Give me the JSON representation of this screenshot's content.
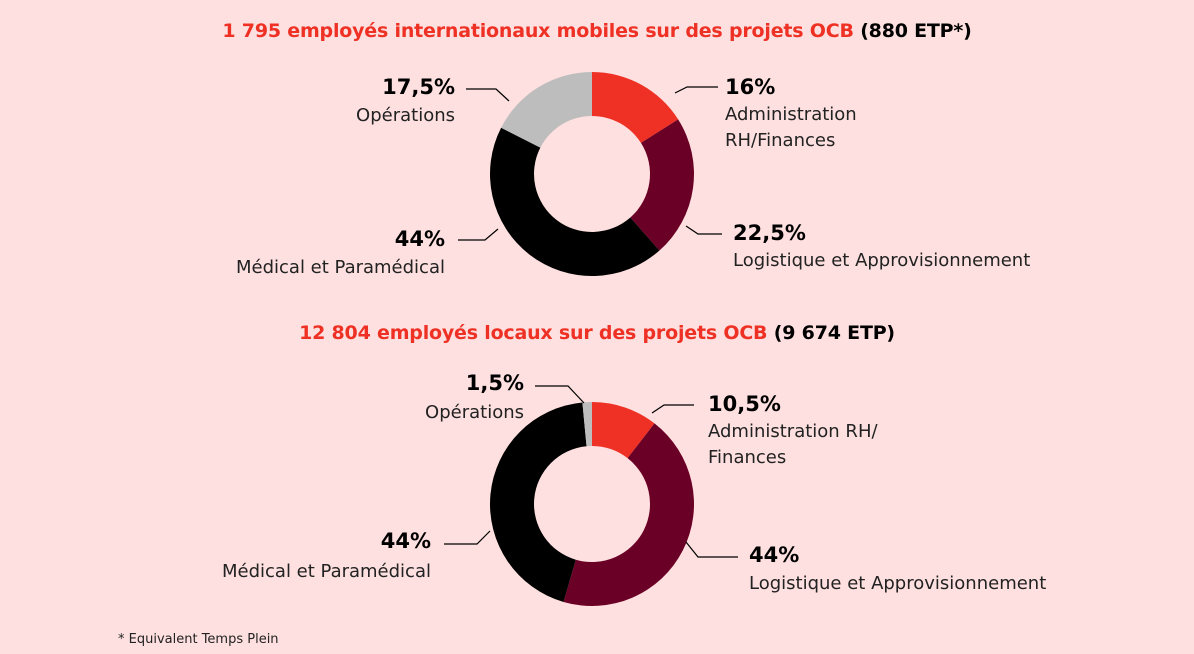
{
  "chart_data": [
    {
      "type": "donut",
      "title": "1 795 employés internationaux mobiles sur des projets OCB",
      "title_suffix": "(880 ETP*)",
      "slices": [
        {
          "pct": "16%",
          "value": 16,
          "label": [
            "Administration",
            "RH/Finances"
          ],
          "color": "#ee3124"
        },
        {
          "pct": "22,5%",
          "value": 22.5,
          "label": [
            "Logistique et Approvisionnement"
          ],
          "color": "#6b0026"
        },
        {
          "pct": "44%",
          "value": 44,
          "label": [
            "Médical et Paramédical"
          ],
          "color": "#000000"
        },
        {
          "pct": "17,5%",
          "value": 17.5,
          "label": [
            "Opérations"
          ],
          "color": "#bdbdbd"
        }
      ]
    },
    {
      "type": "donut",
      "title": "12 804 employés locaux sur des projets OCB",
      "title_suffix": "(9 674 ETP)",
      "slices": [
        {
          "pct": "10,5%",
          "value": 10.5,
          "label": [
            "Administration RH/",
            "Finances"
          ],
          "color": "#ee3124"
        },
        {
          "pct": "44%",
          "value": 44,
          "label": [
            "Logistique et Approvisionnement"
          ],
          "color": "#6b0026"
        },
        {
          "pct": "44%",
          "value": 44,
          "label": [
            "Médical et Paramédical"
          ],
          "color": "#000000"
        },
        {
          "pct": "1,5%",
          "value": 1.5,
          "label": [
            "Opérations"
          ],
          "color": "#bdbdbd"
        }
      ]
    }
  ],
  "footnote": "* Equivalent Temps Plein"
}
